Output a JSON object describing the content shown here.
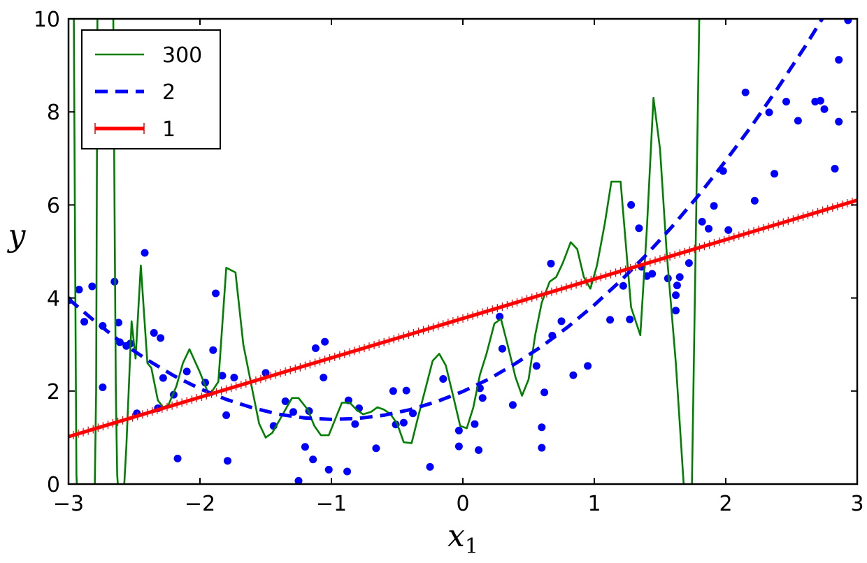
{
  "chart_data": {
    "type": "line",
    "title": "",
    "xlabel": "x₁",
    "ylabel": "y",
    "xlim": [
      -3,
      3
    ],
    "ylim": [
      0,
      10
    ],
    "x_ticks": [
      -3,
      -2,
      -1,
      0,
      1,
      2,
      3
    ],
    "x_tick_labels": [
      "−3",
      "−2",
      "−1",
      "0",
      "1",
      "2",
      "3"
    ],
    "y_ticks": [
      0,
      2,
      4,
      6,
      8,
      10
    ],
    "y_tick_labels": [
      "0",
      "2",
      "4",
      "6",
      "8",
      "10"
    ],
    "grid": false,
    "legend_position": "top-left",
    "legend": [
      {
        "label": "300",
        "color": "#008000",
        "style": "solid-thin"
      },
      {
        "label": "2",
        "color": "#0000ff",
        "style": "dashed"
      },
      {
        "label": "1",
        "color": "#ff0000",
        "style": "solid-thick-plus"
      }
    ],
    "scatter": {
      "color": "#0000ff",
      "points": [
        [
          -3.0,
          3.95
        ],
        [
          -2.92,
          4.18
        ],
        [
          -2.88,
          3.49
        ],
        [
          -2.82,
          4.25
        ],
        [
          -2.74,
          2.08
        ],
        [
          -2.74,
          3.4
        ],
        [
          -2.65,
          4.35
        ],
        [
          -2.62,
          3.47
        ],
        [
          -2.61,
          3.05
        ],
        [
          -2.56,
          2.97
        ],
        [
          -2.53,
          3.02
        ],
        [
          -2.48,
          1.52
        ],
        [
          -2.42,
          4.97
        ],
        [
          -2.35,
          3.25
        ],
        [
          -2.32,
          1.63
        ],
        [
          -2.3,
          3.14
        ],
        [
          -2.28,
          2.28
        ],
        [
          -2.2,
          1.92
        ],
        [
          -2.17,
          0.55
        ],
        [
          -2.1,
          2.42
        ],
        [
          -1.96,
          2.18
        ],
        [
          -1.9,
          2.88
        ],
        [
          -1.88,
          4.1
        ],
        [
          -1.83,
          2.33
        ],
        [
          -1.8,
          1.48
        ],
        [
          -1.79,
          0.5
        ],
        [
          -1.74,
          2.29
        ],
        [
          -1.5,
          2.39
        ],
        [
          -1.44,
          1.25
        ],
        [
          -1.35,
          1.78
        ],
        [
          -1.29,
          1.55
        ],
        [
          -1.25,
          0.07
        ],
        [
          -1.2,
          0.8
        ],
        [
          -1.17,
          1.57
        ],
        [
          -1.14,
          0.53
        ],
        [
          -1.12,
          2.92
        ],
        [
          -1.06,
          2.29
        ],
        [
          -1.05,
          3.06
        ],
        [
          -1.02,
          0.31
        ],
        [
          -0.88,
          0.27
        ],
        [
          -0.87,
          1.8
        ],
        [
          -0.82,
          1.29
        ],
        [
          -0.79,
          1.63
        ],
        [
          -0.66,
          0.77
        ],
        [
          -0.53,
          2.0
        ],
        [
          -0.51,
          1.28
        ],
        [
          -0.45,
          1.32
        ],
        [
          -0.43,
          2.01
        ],
        [
          -0.38,
          1.52
        ],
        [
          -0.25,
          0.37
        ],
        [
          -0.15,
          2.26
        ],
        [
          -0.03,
          1.15
        ],
        [
          -0.03,
          0.81
        ],
        [
          0.09,
          1.29
        ],
        [
          0.12,
          0.73
        ],
        [
          0.13,
          2.06
        ],
        [
          0.15,
          1.85
        ],
        [
          0.28,
          3.6
        ],
        [
          0.3,
          2.91
        ],
        [
          0.38,
          1.7
        ],
        [
          0.56,
          2.54
        ],
        [
          0.6,
          0.78
        ],
        [
          0.6,
          1.22
        ],
        [
          0.62,
          1.97
        ],
        [
          0.67,
          4.74
        ],
        [
          0.68,
          3.19
        ],
        [
          0.75,
          3.5
        ],
        [
          0.84,
          2.34
        ],
        [
          0.95,
          2.54
        ],
        [
          1.12,
          3.53
        ],
        [
          1.22,
          4.26
        ],
        [
          1.27,
          3.54
        ],
        [
          1.28,
          6.0
        ],
        [
          1.34,
          5.5
        ],
        [
          1.36,
          4.67
        ],
        [
          1.4,
          4.47
        ],
        [
          1.44,
          4.52
        ],
        [
          1.56,
          4.42
        ],
        [
          1.62,
          4.06
        ],
        [
          1.62,
          3.73
        ],
        [
          1.63,
          4.27
        ],
        [
          1.65,
          4.45
        ],
        [
          1.72,
          4.75
        ],
        [
          1.82,
          5.64
        ],
        [
          1.87,
          5.49
        ],
        [
          1.91,
          5.98
        ],
        [
          1.98,
          6.73
        ],
        [
          2.02,
          5.46
        ],
        [
          2.22,
          6.09
        ],
        [
          2.15,
          8.42
        ],
        [
          2.33,
          7.99
        ],
        [
          2.37,
          6.67
        ],
        [
          2.46,
          8.22
        ],
        [
          2.55,
          7.81
        ],
        [
          2.68,
          8.22
        ],
        [
          2.72,
          8.24
        ],
        [
          2.75,
          8.06
        ],
        [
          2.83,
          6.78
        ],
        [
          2.86,
          7.79
        ],
        [
          2.86,
          9.12
        ],
        [
          2.93,
          9.97
        ]
      ]
    },
    "series": [
      {
        "name": "300",
        "color": "#008000",
        "style": "solid",
        "x": [
          -2.965,
          -2.96,
          -2.95,
          -2.94,
          -2.93,
          -2.92,
          -2.9,
          -2.87,
          -2.84,
          -2.81,
          -2.8,
          -2.79,
          -2.78,
          -2.77,
          -2.76,
          -2.75,
          -2.72,
          -2.68,
          -2.66,
          -2.65,
          -2.64,
          -2.63,
          -2.62,
          -2.6,
          -2.58,
          -2.56,
          -2.52,
          -2.49,
          -2.45,
          -2.4,
          -2.37,
          -2.32,
          -2.28,
          -2.24,
          -2.18,
          -2.13,
          -2.08,
          -2.0,
          -1.93,
          -1.86,
          -1.8,
          -1.73,
          -1.67,
          -1.6,
          -1.55,
          -1.5,
          -1.45,
          -1.4,
          -1.35,
          -1.3,
          -1.25,
          -1.18,
          -1.13,
          -1.08,
          -1.02,
          -0.97,
          -0.92,
          -0.86,
          -0.81,
          -0.76,
          -0.7,
          -0.65,
          -0.6,
          -0.55,
          -0.5,
          -0.45,
          -0.39,
          -0.34,
          -0.28,
          -0.23,
          -0.18,
          -0.13,
          -0.07,
          -0.02,
          0.03,
          0.08,
          0.13,
          0.18,
          0.24,
          0.29,
          0.34,
          0.4,
          0.45,
          0.5,
          0.55,
          0.6,
          0.66,
          0.71,
          0.76,
          0.82,
          0.87,
          0.92,
          0.97,
          1.02,
          1.08,
          1.13,
          1.2,
          1.28,
          1.35,
          1.4,
          1.45,
          1.5,
          1.55,
          1.62,
          1.68,
          1.74,
          1.8,
          1.86,
          1.92,
          1.98,
          2.04,
          2.1,
          2.13,
          2.15,
          2.18,
          2.2,
          2.21,
          2.22,
          2.23,
          2.24,
          2.25
        ],
        "y": [
          10.3,
          10.3,
          5.0,
          0.2,
          -0.5,
          -0.5,
          -0.2,
          -0.1,
          -0.1,
          -0.1,
          0.0,
          2.0,
          10.3,
          10.3,
          10.3,
          10.3,
          10.3,
          10.3,
          10.3,
          6.0,
          2.0,
          0.2,
          -0.2,
          -0.3,
          -0.2,
          0.8,
          3.5,
          2.7,
          4.7,
          2.6,
          2.5,
          1.8,
          1.65,
          1.7,
          2.1,
          2.6,
          2.9,
          2.4,
          1.9,
          2.2,
          4.65,
          4.55,
          3.0,
          2.0,
          1.3,
          1.0,
          1.1,
          1.35,
          1.6,
          1.85,
          1.85,
          1.6,
          1.25,
          1.05,
          1.05,
          1.4,
          1.75,
          1.75,
          1.6,
          1.5,
          1.55,
          1.65,
          1.6,
          1.5,
          1.3,
          0.9,
          0.88,
          1.45,
          2.1,
          2.65,
          2.8,
          2.55,
          1.85,
          1.25,
          1.2,
          1.65,
          2.35,
          2.8,
          3.45,
          3.55,
          3.0,
          2.3,
          1.9,
          2.25,
          3.2,
          3.9,
          4.35,
          4.45,
          4.75,
          5.2,
          5.05,
          4.45,
          4.2,
          4.7,
          5.6,
          6.5,
          6.5,
          3.8,
          3.2,
          5.5,
          8.3,
          7.2,
          5.0,
          2.6,
          0.0,
          -0.5,
          10.3,
          10.3,
          10.3,
          10.3,
          10.3,
          10.3,
          10.3,
          10.3,
          10.3,
          10.3,
          10.3,
          10.3,
          10.3,
          10.3,
          10.3
        ]
      },
      {
        "name": "2",
        "color": "#0000ff",
        "style": "dashed",
        "x": [
          -3.0,
          -2.8,
          -2.6,
          -2.4,
          -2.2,
          -2.0,
          -1.8,
          -1.6,
          -1.4,
          -1.2,
          -1.0,
          -0.8,
          -0.6,
          -0.4,
          -0.2,
          0.0,
          0.2,
          0.4,
          0.6,
          0.8,
          1.0,
          1.2,
          1.4,
          1.6,
          1.8,
          2.0,
          2.2,
          2.4,
          2.6,
          2.8,
          2.95
        ],
        "y": [
          3.98,
          3.5,
          3.05,
          2.67,
          2.33,
          2.05,
          1.82,
          1.64,
          1.5,
          1.42,
          1.39,
          1.41,
          1.48,
          1.6,
          1.77,
          1.99,
          2.26,
          2.59,
          2.96,
          3.38,
          3.85,
          4.37,
          4.94,
          5.56,
          6.23,
          6.95,
          7.71,
          8.53,
          9.39,
          10.3,
          10.9
        ]
      },
      {
        "name": "1",
        "color": "#ff0000",
        "style": "solid-plus",
        "x": [
          -3.0,
          3.0
        ],
        "y": [
          1.02,
          6.1
        ]
      }
    ]
  }
}
